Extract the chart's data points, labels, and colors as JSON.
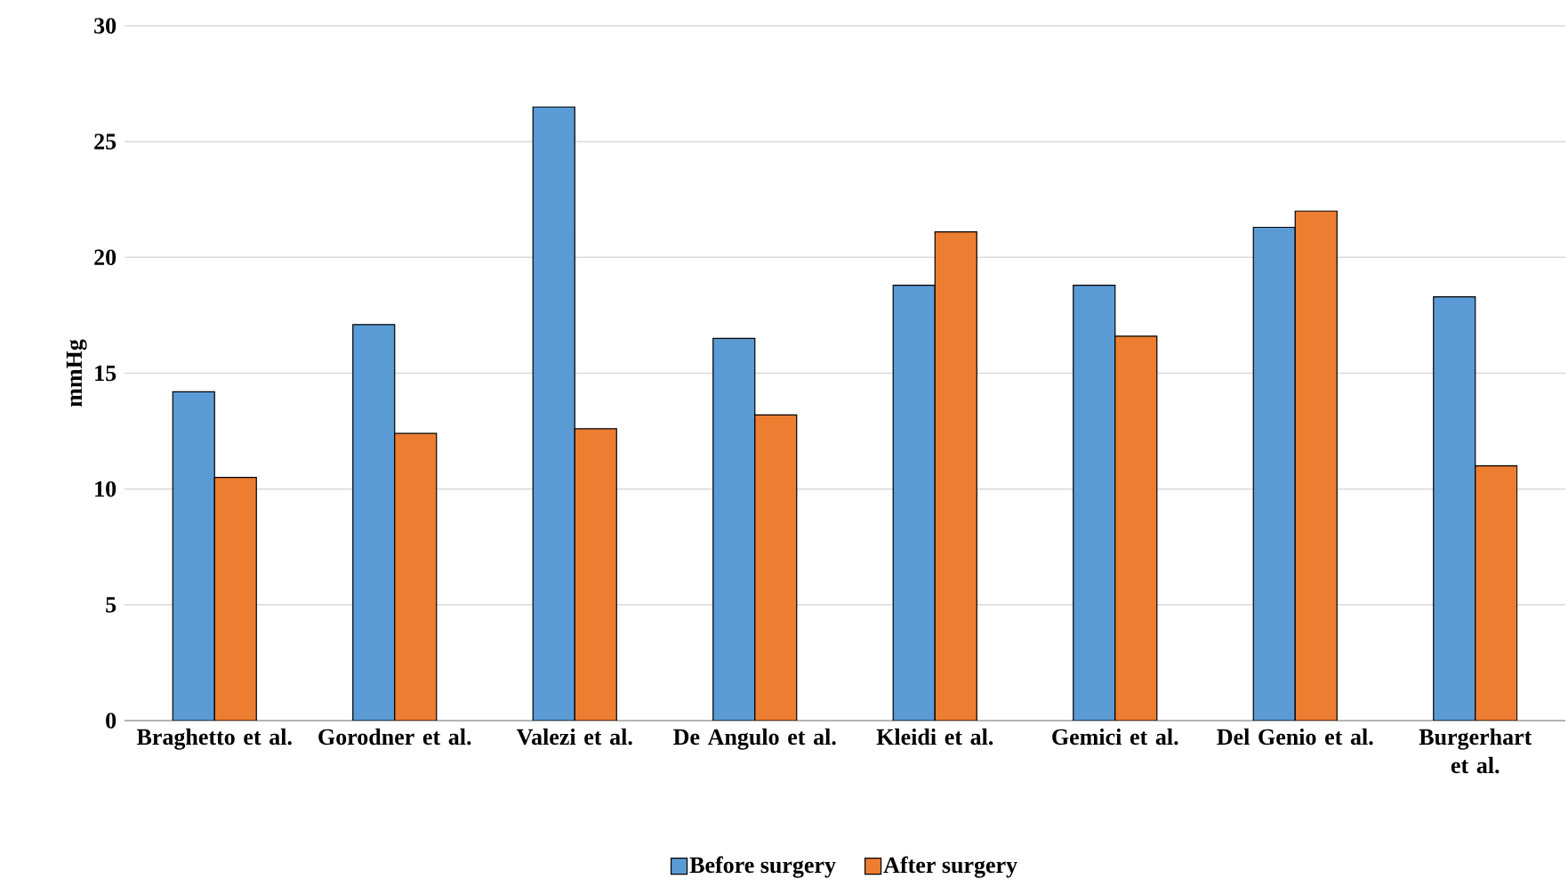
{
  "chart_data": {
    "type": "bar",
    "ylabel": "mmHg",
    "categories": [
      "Braghetto et al.",
      "Gorodner et al.",
      "Valezi et al.",
      "De Angulo et al.",
      "Kleidi et al.",
      "Gemici et al.",
      "Del Genio et al.",
      "Burgerhart et al."
    ],
    "series": [
      {
        "name": "Before surgery",
        "color": "#5b9bd5",
        "values": [
          14.2,
          17.1,
          26.5,
          16.5,
          18.8,
          18.8,
          21.3,
          18.3
        ]
      },
      {
        "name": "After surgery",
        "color": "#ed7d31",
        "values": [
          10.5,
          12.4,
          12.6,
          13.2,
          21.1,
          16.6,
          22.0,
          11.0
        ]
      }
    ],
    "ylim": [
      0,
      30
    ],
    "yticks": [
      0,
      5,
      10,
      15,
      20,
      25,
      30
    ],
    "grid": "y",
    "legend": "bottom"
  }
}
